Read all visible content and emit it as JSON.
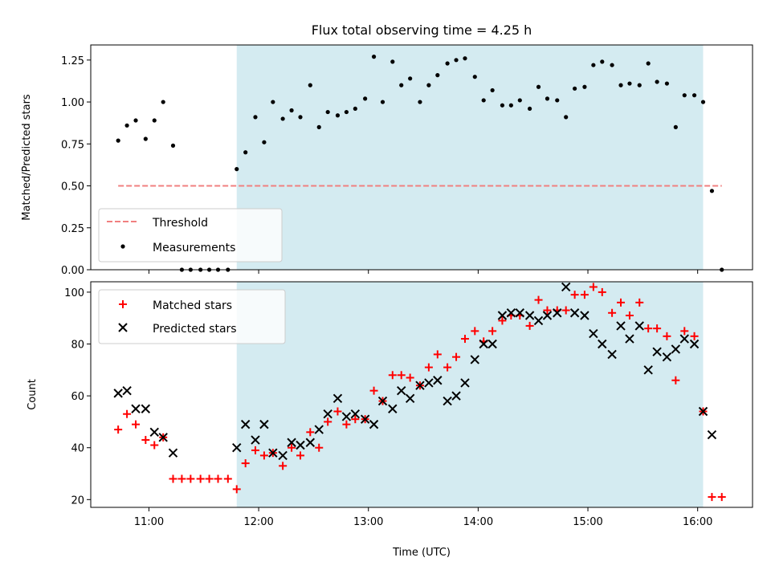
{
  "title": "Flux total observing time = 4.25 h",
  "chart_data": [
    {
      "type": "scatter",
      "panel": "top",
      "ylabel": "Matched/Predicted stars",
      "xlim": [
        10.47,
        16.5
      ],
      "ylim": [
        0,
        1.34
      ],
      "yticks": [
        {
          "value": 0.0,
          "label": "0.00"
        },
        {
          "value": 0.25,
          "label": "0.25"
        },
        {
          "value": 0.5,
          "label": "0.50"
        },
        {
          "value": 0.75,
          "label": "0.75"
        },
        {
          "value": 1.0,
          "label": "1.00"
        },
        {
          "value": 1.25,
          "label": "1.25"
        }
      ],
      "shaded_region": {
        "x_start": 11.8,
        "x_end": 16.05,
        "color": "#d4ebf1"
      },
      "legend_position": "lower-left",
      "series": [
        {
          "name": "Threshold",
          "style": "dashed-line",
          "color": "#f08080",
          "x": [
            10.72,
            16.22
          ],
          "y": [
            0.5,
            0.5
          ]
        },
        {
          "name": "Measurements",
          "style": "dot",
          "color": "#000000",
          "x": [
            10.72,
            10.8,
            10.88,
            10.97,
            11.05,
            11.13,
            11.22,
            11.3,
            11.38,
            11.47,
            11.55,
            11.63,
            11.72,
            11.8,
            11.88,
            11.97,
            12.05,
            12.13,
            12.22,
            12.3,
            12.38,
            12.47,
            12.55,
            12.63,
            12.72,
            12.8,
            12.88,
            12.97,
            13.05,
            13.13,
            13.22,
            13.3,
            13.38,
            13.47,
            13.55,
            13.63,
            13.72,
            13.8,
            13.88,
            13.97,
            14.05,
            14.13,
            14.22,
            14.3,
            14.38,
            14.47,
            14.55,
            14.63,
            14.72,
            14.8,
            14.88,
            14.97,
            15.05,
            15.13,
            15.22,
            15.3,
            15.38,
            15.47,
            15.55,
            15.63,
            15.72,
            15.8,
            15.88,
            15.97,
            16.05,
            16.13,
            16.22
          ],
          "y": [
            0.77,
            0.86,
            0.89,
            0.78,
            0.89,
            1.0,
            0.74,
            0.0,
            0.0,
            0.0,
            0.0,
            0.0,
            0.0,
            0.6,
            0.7,
            0.91,
            0.76,
            1.0,
            0.9,
            0.95,
            0.91,
            1.1,
            0.85,
            0.94,
            0.92,
            0.94,
            0.96,
            1.02,
            1.27,
            1.0,
            1.24,
            1.1,
            1.14,
            1.0,
            1.1,
            1.16,
            1.23,
            1.25,
            1.26,
            1.15,
            1.01,
            1.07,
            0.98,
            0.98,
            1.01,
            0.96,
            1.09,
            1.02,
            1.01,
            0.91,
            1.08,
            1.09,
            1.22,
            1.24,
            1.22,
            1.1,
            1.11,
            1.1,
            1.23,
            1.12,
            1.11,
            0.85,
            1.04,
            1.04,
            1.0,
            0.47,
            0.0
          ]
        }
      ]
    },
    {
      "type": "scatter",
      "panel": "bottom",
      "xlabel": "Time (UTC)",
      "ylabel": "Count",
      "xlim": [
        10.47,
        16.5
      ],
      "ylim": [
        17,
        104
      ],
      "xticks": [
        {
          "value": 11,
          "label": "11:00"
        },
        {
          "value": 12,
          "label": "12:00"
        },
        {
          "value": 13,
          "label": "13:00"
        },
        {
          "value": 14,
          "label": "14:00"
        },
        {
          "value": 15,
          "label": "15:00"
        },
        {
          "value": 16,
          "label": "16:00"
        }
      ],
      "yticks": [
        {
          "value": 20,
          "label": "20"
        },
        {
          "value": 40,
          "label": "40"
        },
        {
          "value": 60,
          "label": "60"
        },
        {
          "value": 80,
          "label": "80"
        },
        {
          "value": 100,
          "label": "100"
        }
      ],
      "shaded_region": {
        "x_start": 11.8,
        "x_end": 16.05,
        "color": "#d4ebf1"
      },
      "legend_position": "upper-left",
      "series": [
        {
          "name": "Matched stars",
          "style": "plus",
          "color": "#ff0000",
          "x": [
            10.72,
            10.8,
            10.88,
            10.97,
            11.05,
            11.13,
            11.22,
            11.3,
            11.38,
            11.47,
            11.55,
            11.63,
            11.72,
            11.8,
            11.88,
            11.97,
            12.05,
            12.13,
            12.22,
            12.3,
            12.38,
            12.47,
            12.55,
            12.63,
            12.72,
            12.8,
            12.88,
            12.97,
            13.05,
            13.13,
            13.22,
            13.3,
            13.38,
            13.47,
            13.55,
            13.63,
            13.72,
            13.8,
            13.88,
            13.97,
            14.05,
            14.13,
            14.22,
            14.3,
            14.38,
            14.47,
            14.55,
            14.63,
            14.72,
            14.8,
            14.88,
            14.97,
            15.05,
            15.13,
            15.22,
            15.3,
            15.38,
            15.47,
            15.55,
            15.63,
            15.72,
            15.8,
            15.88,
            15.97,
            16.05,
            16.13,
            16.22
          ],
          "y": [
            47,
            53,
            49,
            43,
            41,
            44,
            28,
            28,
            28,
            28,
            28,
            28,
            28,
            24,
            34,
            39,
            37,
            38,
            33,
            40,
            37,
            46,
            40,
            50,
            54,
            49,
            51,
            51,
            62,
            58,
            68,
            68,
            67,
            64,
            71,
            76,
            71,
            75,
            82,
            85,
            81,
            85,
            89,
            91,
            91,
            87,
            97,
            93,
            93,
            93,
            99,
            99,
            102,
            100,
            92,
            96,
            91,
            96,
            86,
            86,
            83,
            66,
            85,
            83,
            54,
            21,
            21
          ]
        },
        {
          "name": "Predicted stars",
          "style": "x",
          "color": "#000000",
          "x": [
            10.72,
            10.8,
            10.88,
            10.97,
            11.05,
            11.13,
            11.22,
            11.8,
            11.88,
            11.97,
            12.05,
            12.13,
            12.22,
            12.3,
            12.38,
            12.47,
            12.55,
            12.63,
            12.72,
            12.8,
            12.88,
            12.97,
            13.05,
            13.13,
            13.22,
            13.3,
            13.38,
            13.47,
            13.55,
            13.63,
            13.72,
            13.8,
            13.88,
            13.97,
            14.05,
            14.13,
            14.22,
            14.3,
            14.38,
            14.47,
            14.55,
            14.63,
            14.72,
            14.8,
            14.88,
            14.97,
            15.05,
            15.13,
            15.22,
            15.3,
            15.38,
            15.47,
            15.55,
            15.63,
            15.72,
            15.8,
            15.88,
            15.97,
            16.05,
            16.13
          ],
          "y": [
            61,
            62,
            55,
            55,
            46,
            44,
            38,
            40,
            49,
            43,
            49,
            38,
            37,
            42,
            41,
            42,
            47,
            53,
            59,
            52,
            53,
            51,
            49,
            58,
            55,
            62,
            59,
            64,
            65,
            66,
            58,
            60,
            65,
            74,
            80,
            80,
            91,
            92,
            92,
            91,
            89,
            91,
            92,
            102,
            92,
            91,
            84,
            80,
            76,
            87,
            82,
            87,
            70,
            77,
            75,
            78,
            82,
            80,
            54,
            45
          ]
        }
      ]
    }
  ]
}
